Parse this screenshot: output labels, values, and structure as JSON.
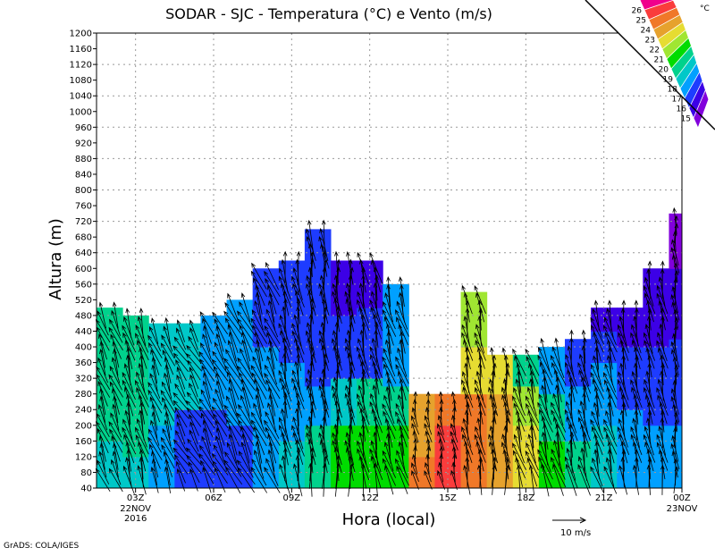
{
  "chart_data": {
    "type": "heatmap",
    "title": "SODAR - SJC - Temperatura (°C) e Vento (m/s)",
    "xlabel": "Hora (local)",
    "ylabel": "Altura (m)",
    "xlim": [
      1.5,
      24
    ],
    "ylim": [
      40,
      1200
    ],
    "y_ticks": [
      40,
      80,
      120,
      160,
      200,
      240,
      280,
      320,
      360,
      400,
      440,
      480,
      520,
      560,
      600,
      640,
      680,
      720,
      760,
      800,
      840,
      880,
      920,
      960,
      1000,
      1040,
      1080,
      1120,
      1160,
      1200
    ],
    "x_ticks": [
      {
        "hour": 3,
        "label": "03Z",
        "sub": [
          "22NOV",
          "2016"
        ]
      },
      {
        "hour": 6,
        "label": "06Z",
        "sub": []
      },
      {
        "hour": 9,
        "label": "09Z",
        "sub": []
      },
      {
        "hour": 12,
        "label": "12Z",
        "sub": []
      },
      {
        "hour": 15,
        "label": "15Z",
        "sub": []
      },
      {
        "hour": 18,
        "label": "18Z",
        "sub": []
      },
      {
        "hour": 21,
        "label": "21Z",
        "sub": []
      },
      {
        "hour": 24,
        "label": "00Z",
        "sub": [
          "23NOV"
        ]
      }
    ],
    "grid": true,
    "colorbar": {
      "unit": "°C",
      "labels": [
        "26",
        "25",
        "24",
        "23",
        "22",
        "21",
        "20",
        "19",
        "18",
        "17",
        "16",
        "15"
      ],
      "colors": [
        "#f0008c",
        "#fa3c3c",
        "#f07828",
        "#e6a22d",
        "#e6dc32",
        "#a0e632",
        "#00dc00",
        "#00d28c",
        "#00c8c8",
        "#00a0ff",
        "#1e3cff",
        "#3c00e6",
        "#8200dc"
      ]
    },
    "temperature_columns": [
      {
        "h0": 1.5,
        "h1": 2.5,
        "top": 500,
        "seg": [
          [
            40,
            160,
            18.5
          ],
          [
            160,
            500,
            19.5
          ]
        ],
        "wdir": 160,
        "wspd": 8
      },
      {
        "h0": 2.5,
        "h1": 3.5,
        "top": 480,
        "seg": [
          [
            40,
            120,
            18.5
          ],
          [
            120,
            480,
            19.5
          ]
        ],
        "wdir": 165,
        "wspd": 9
      },
      {
        "h0": 3.5,
        "h1": 4.5,
        "top": 460,
        "seg": [
          [
            40,
            200,
            17.5
          ],
          [
            200,
            460,
            18.5
          ]
        ],
        "wdir": 160,
        "wspd": 8
      },
      {
        "h0": 4.5,
        "h1": 5.5,
        "top": 460,
        "seg": [
          [
            40,
            240,
            16.5
          ],
          [
            240,
            460,
            18.5
          ]
        ],
        "wdir": 150,
        "wspd": 7
      },
      {
        "h0": 5.5,
        "h1": 6.5,
        "top": 480,
        "seg": [
          [
            40,
            240,
            16.5
          ],
          [
            240,
            480,
            17.5
          ]
        ],
        "wdir": 155,
        "wspd": 8
      },
      {
        "h0": 6.5,
        "h1": 7.5,
        "top": 520,
        "seg": [
          [
            40,
            200,
            16.5
          ],
          [
            200,
            520,
            17.5
          ]
        ],
        "wdir": 155,
        "wspd": 9
      },
      {
        "h0": 7.5,
        "h1": 8.5,
        "top": 600,
        "seg": [
          [
            40,
            400,
            17.5
          ],
          [
            400,
            600,
            16.5
          ]
        ],
        "wdir": 160,
        "wspd": 9
      },
      {
        "h0": 8.5,
        "h1": 9.5,
        "top": 620,
        "seg": [
          [
            40,
            160,
            18.5
          ],
          [
            160,
            360,
            17.5
          ],
          [
            360,
            620,
            16.5
          ]
        ],
        "wdir": 170,
        "wspd": 10
      },
      {
        "h0": 9.5,
        "h1": 10.5,
        "top": 700,
        "seg": [
          [
            40,
            200,
            19.5
          ],
          [
            200,
            300,
            17.5
          ],
          [
            300,
            700,
            16.5
          ]
        ],
        "wdir": 175,
        "wspd": 10
      },
      {
        "h0": 10.5,
        "h1": 11.5,
        "top": 620,
        "seg": [
          [
            40,
            200,
            20.5
          ],
          [
            200,
            320,
            18.5
          ],
          [
            320,
            480,
            16.5
          ],
          [
            480,
            620,
            15.5
          ]
        ],
        "wdir": 175,
        "wspd": 10
      },
      {
        "h0": 11.5,
        "h1": 12.5,
        "top": 620,
        "seg": [
          [
            40,
            200,
            20.5
          ],
          [
            200,
            320,
            19.5
          ],
          [
            320,
            500,
            16.5
          ],
          [
            500,
            620,
            15.5
          ]
        ],
        "wdir": 170,
        "wspd": 10
      },
      {
        "h0": 12.5,
        "h1": 13.5,
        "top": 560,
        "seg": [
          [
            40,
            200,
            20.5
          ],
          [
            200,
            300,
            19.5
          ],
          [
            300,
            560,
            17.5
          ]
        ],
        "wdir": 165,
        "wspd": 9
      },
      {
        "h0": 13.5,
        "h1": 14.5,
        "top": 280,
        "seg": [
          [
            40,
            120,
            24.5
          ],
          [
            120,
            280,
            23.5
          ]
        ],
        "wdir": 170,
        "wspd": 6
      },
      {
        "h0": 14.5,
        "h1": 15.5,
        "top": 280,
        "seg": [
          [
            40,
            200,
            25.5
          ],
          [
            200,
            280,
            24.5
          ]
        ],
        "wdir": 170,
        "wspd": 6
      },
      {
        "h0": 15.5,
        "h1": 16.5,
        "top": 540,
        "seg": [
          [
            40,
            280,
            24.5
          ],
          [
            280,
            400,
            22.5
          ],
          [
            400,
            540,
            21.5
          ]
        ],
        "wdir": 170,
        "wspd": 9
      },
      {
        "h0": 16.5,
        "h1": 17.5,
        "top": 380,
        "seg": [
          [
            40,
            280,
            23.5
          ],
          [
            280,
            380,
            22.5
          ]
        ],
        "wdir": 175,
        "wspd": 9
      },
      {
        "h0": 17.5,
        "h1": 18.5,
        "top": 380,
        "seg": [
          [
            40,
            200,
            22.5
          ],
          [
            200,
            300,
            21.5
          ],
          [
            300,
            380,
            19.5
          ]
        ],
        "wdir": 165,
        "wspd": 9
      },
      {
        "h0": 18.5,
        "h1": 19.5,
        "top": 400,
        "seg": [
          [
            40,
            160,
            20.5
          ],
          [
            160,
            280,
            19.5
          ],
          [
            280,
            400,
            17.5
          ]
        ],
        "wdir": 165,
        "wspd": 10
      },
      {
        "h0": 19.5,
        "h1": 20.5,
        "top": 420,
        "seg": [
          [
            40,
            160,
            19.5
          ],
          [
            160,
            300,
            17.5
          ],
          [
            300,
            420,
            16.5
          ]
        ],
        "wdir": 170,
        "wspd": 10
      },
      {
        "h0": 20.5,
        "h1": 21.5,
        "top": 500,
        "seg": [
          [
            40,
            200,
            18.5
          ],
          [
            200,
            360,
            17.5
          ],
          [
            360,
            440,
            16.5
          ],
          [
            440,
            500,
            15.5
          ]
        ],
        "wdir": 165,
        "wspd": 9
      },
      {
        "h0": 21.5,
        "h1": 22.5,
        "top": 500,
        "seg": [
          [
            40,
            240,
            17.5
          ],
          [
            240,
            400,
            16.5
          ],
          [
            400,
            500,
            15.5
          ]
        ],
        "wdir": 170,
        "wspd": 9
      },
      {
        "h0": 22.5,
        "h1": 23.5,
        "top": 600,
        "seg": [
          [
            40,
            200,
            17.5
          ],
          [
            200,
            400,
            16.5
          ],
          [
            400,
            600,
            15.5
          ]
        ],
        "wdir": 170,
        "wspd": 9
      },
      {
        "h0": 23.5,
        "h1": 24,
        "top": 740,
        "seg": [
          [
            40,
            200,
            17.5
          ],
          [
            200,
            420,
            16.5
          ],
          [
            420,
            600,
            15.5
          ],
          [
            600,
            740,
            14.5
          ]
        ],
        "wdir": 175,
        "wspd": 8
      }
    ],
    "wind_reference": {
      "value": 10,
      "label": "10 m/s"
    }
  },
  "footer": {
    "credit": "GrADS: COLA/IGES"
  }
}
